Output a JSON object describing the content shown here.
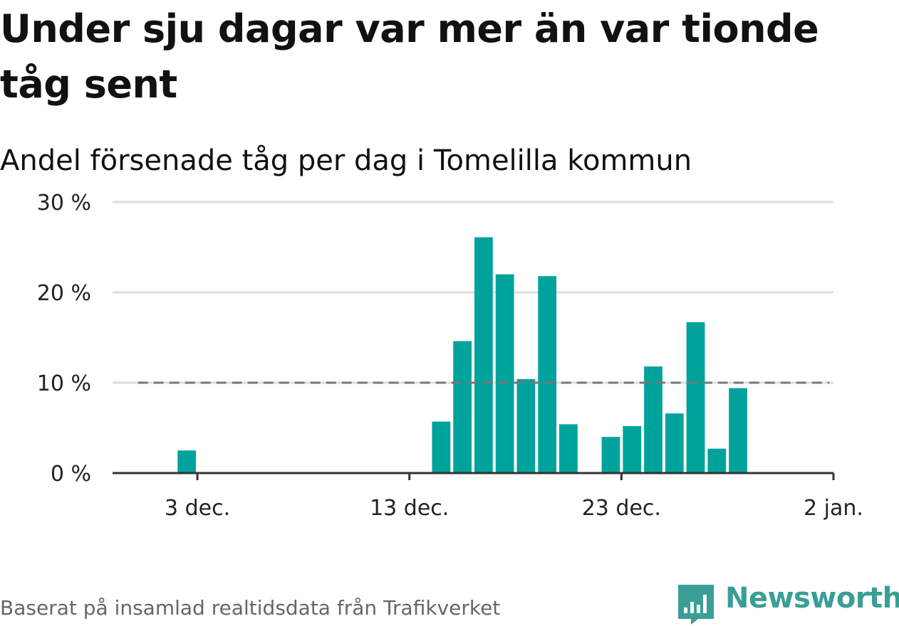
{
  "title": "Under sju dagar var mer än var tionde tåg sent",
  "subtitle": "Andel försenade tåg per dag i Tomelilla kommun",
  "footer": "Baserat på insamlad realtidsdata från Trafikverket",
  "brand": {
    "name": "Newsworthy",
    "icon": "newsworthy-logo-icon",
    "color": "#3a9e96"
  },
  "colors": {
    "bar": "#00a39b",
    "reference_line": "#777777",
    "grid": "#dddddd",
    "axis": "#333333"
  },
  "chart_data": {
    "type": "bar",
    "title": "Under sju dagar var mer än var tionde tåg sent",
    "subtitle": "Andel försenade tåg per dag i Tomelilla kommun",
    "xlabel": "",
    "ylabel": "",
    "ylim": [
      0,
      30
    ],
    "yticks": [
      0,
      10,
      20,
      30
    ],
    "ytick_labels": [
      "0 %",
      "10 %",
      "20 %",
      "30 %"
    ],
    "xticks": [
      "2023-12-03",
      "2023-12-13",
      "2023-12-23",
      "2024-01-02"
    ],
    "xtick_labels": [
      "3 dec.",
      "13 dec.",
      "23 dec.",
      "2 jan."
    ],
    "xlim": [
      "2023-11-29",
      "2024-01-02"
    ],
    "reference_line": {
      "y": 10,
      "style": "dashed",
      "from": "2023-11-30",
      "to": "2024-01-01"
    },
    "grid": true,
    "legend": "none",
    "series": [
      {
        "dates": [
          "2023-12-02",
          "2023-12-14",
          "2023-12-15",
          "2023-12-16",
          "2023-12-17",
          "2023-12-18",
          "2023-12-19",
          "2023-12-20",
          "2023-12-22",
          "2023-12-23",
          "2023-12-24",
          "2023-12-25",
          "2023-12-26",
          "2023-12-27",
          "2023-12-28"
        ],
        "values": [
          2.5,
          5.7,
          14.6,
          26.1,
          22.0,
          10.4,
          21.8,
          5.4,
          4.0,
          5.2,
          11.8,
          6.6,
          16.7,
          2.7,
          9.4
        ]
      }
    ]
  }
}
